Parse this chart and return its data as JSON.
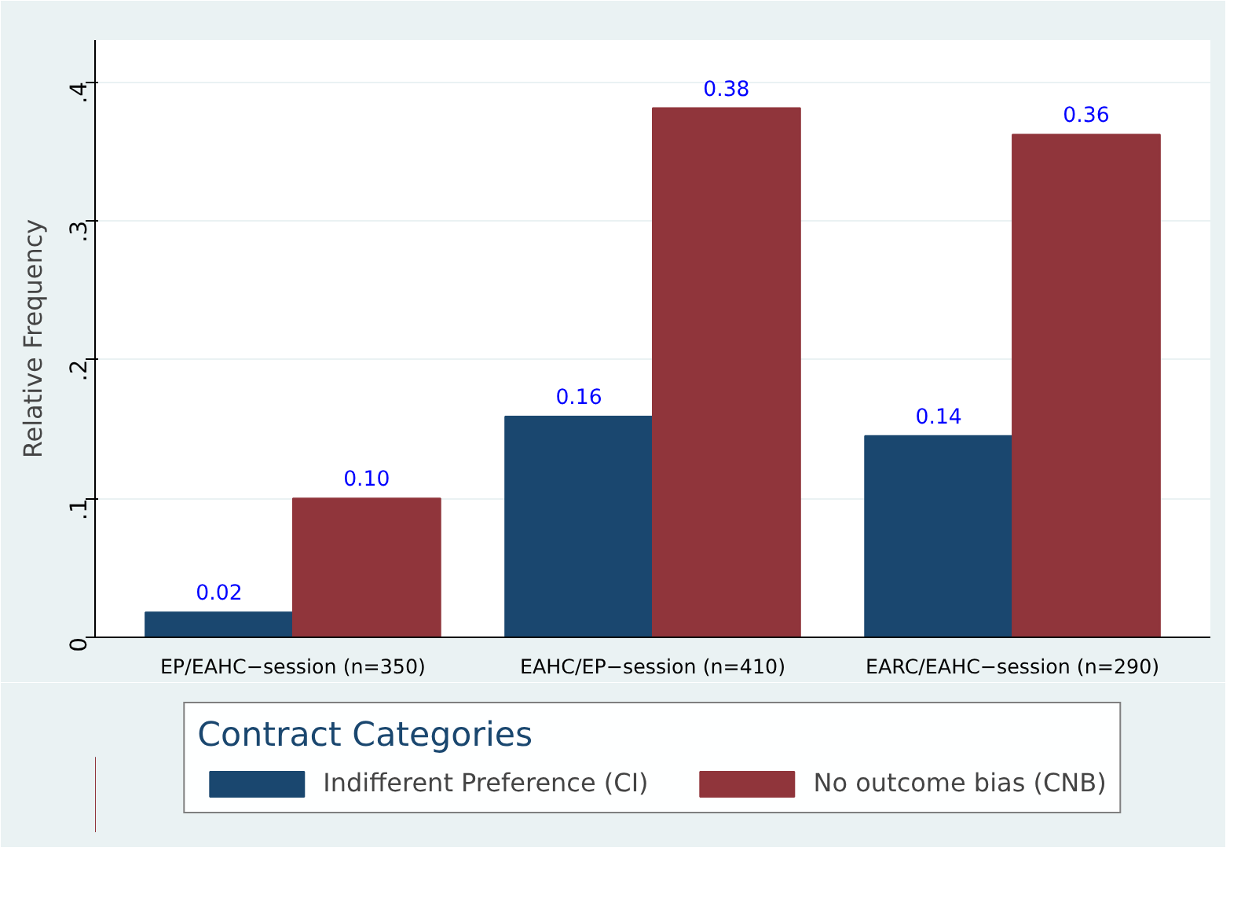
{
  "chart_data": {
    "type": "bar",
    "ylabel": "Relative Frequency",
    "legend_title": "Contract Categories",
    "categories": [
      "EP/EAHC−session (n=350)",
      "EAHC/EP−session (n=410)",
      "EARC/EAHC−session (n=290)"
    ],
    "series": [
      {
        "name": "Indifferent Preference (CI)",
        "color": "#1a476f",
        "values": [
          0.018,
          0.159,
          0.145
        ],
        "value_labels": [
          "0.02",
          "0.16",
          "0.14"
        ]
      },
      {
        "name": "No outcome bias (CNB)",
        "color": "#90353b",
        "values": [
          0.1,
          0.381,
          0.362
        ],
        "value_labels": [
          "0.10",
          "0.38",
          "0.36"
        ]
      }
    ],
    "ylim": [
      0,
      0.43
    ],
    "yticks": [
      {
        "value": 0,
        "label": "0"
      },
      {
        "value": 0.1,
        "label": ".1"
      },
      {
        "value": 0.2,
        "label": ".2"
      },
      {
        "value": 0.3,
        "label": ".3"
      },
      {
        "value": 0.4,
        "label": ".4"
      }
    ],
    "grid": "y",
    "legend": "bottom"
  }
}
